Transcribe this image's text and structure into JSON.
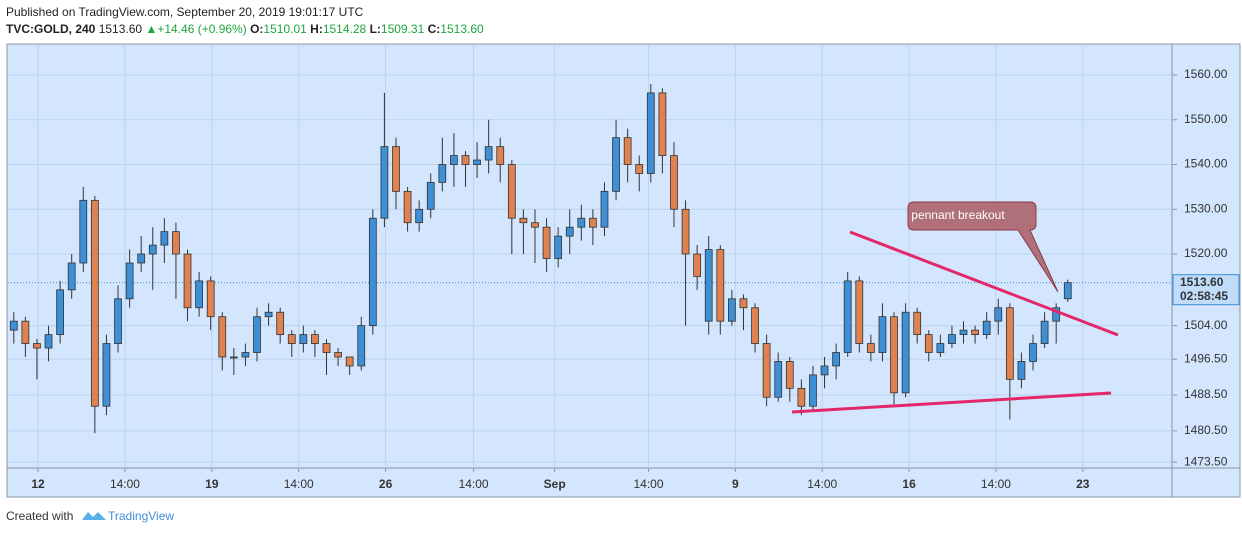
{
  "header": {
    "published": "Published on TradingView.com, September 20, 2019 19:01:17 UTC",
    "symbol": "TVC:GOLD, 240",
    "last": "1513.60",
    "change": "+14.46 (+0.96%)",
    "ohlc": [
      {
        "label": "O:",
        "value": "1510.01"
      },
      {
        "label": "H:",
        "value": "1514.28"
      },
      {
        "label": "L:",
        "value": "1509.31"
      },
      {
        "label": "C:",
        "value": "1513.60"
      }
    ]
  },
  "chart_data": {
    "type": "candlestick",
    "open": [
      1503,
      1505,
      1500,
      1499,
      1502,
      1512,
      1518,
      1532,
      1486,
      1500,
      1510,
      1518,
      1520,
      1522,
      1525,
      1520,
      1508,
      1514,
      1506,
      1497,
      1497,
      1498,
      1506,
      1507,
      1502,
      1500,
      1502,
      1500,
      1498,
      1497,
      1495,
      1504,
      1528,
      1544,
      1534,
      1527,
      1530,
      1536,
      1540,
      1542,
      1540,
      1541,
      1544,
      1540,
      1528,
      1527,
      1526,
      1519,
      1524,
      1526,
      1528,
      1526,
      1534,
      1546,
      1540,
      1538,
      1556,
      1542,
      1530,
      1520,
      1505,
      1521,
      1505,
      1510,
      1508,
      1500,
      1488,
      1496,
      1490,
      1486,
      1493,
      1495,
      1498,
      1514,
      1500,
      1498,
      1506,
      1489,
      1507,
      1502,
      1498,
      1500,
      1502,
      1503,
      1502,
      1505,
      1508,
      1492,
      1496,
      1500,
      1505,
      1510.01
    ],
    "high": [
      1507,
      1506,
      1501,
      1504,
      1514,
      1520,
      1535,
      1533,
      1502,
      1513,
      1521,
      1524,
      1526,
      1528,
      1527,
      1521,
      1516,
      1515,
      1507,
      1499,
      1500,
      1508,
      1509,
      1508,
      1503,
      1504,
      1503,
      1501,
      1499,
      1497,
      1506,
      1530,
      1556,
      1546,
      1535,
      1532,
      1538,
      1546,
      1547,
      1543,
      1545,
      1550,
      1546,
      1541,
      1530,
      1530,
      1528,
      1526,
      1530,
      1531,
      1530,
      1536,
      1550,
      1548,
      1542,
      1558,
      1557,
      1545,
      1532,
      1522,
      1524,
      1522,
      1512,
      1511,
      1509,
      1502,
      1498,
      1497,
      1492,
      1495,
      1497,
      1500,
      1516,
      1515,
      1502,
      1509,
      1507,
      1509,
      1508,
      1503,
      1502,
      1504,
      1505,
      1504,
      1507,
      1510,
      1509,
      1498,
      1502,
      1507,
      1509,
      1514.28
    ],
    "low": [
      1500,
      1497,
      1492,
      1496,
      1500,
      1510,
      1516,
      1480,
      1484,
      1498,
      1508,
      1516,
      1512,
      1518,
      1510,
      1505,
      1506,
      1503,
      1494,
      1493,
      1495,
      1496,
      1504,
      1500,
      1497,
      1498,
      1497,
      1493,
      1495,
      1493,
      1494,
      1502,
      1526,
      1530,
      1525,
      1525,
      1528,
      1534,
      1535,
      1535,
      1537,
      1538,
      1536,
      1520,
      1520,
      1518,
      1516,
      1517,
      1520,
      1523,
      1522,
      1524,
      1532,
      1536,
      1534,
      1536,
      1538,
      1526,
      1504,
      1512,
      1502,
      1502,
      1504,
      1503,
      1498,
      1486,
      1487,
      1487,
      1484,
      1485,
      1490,
      1492,
      1497,
      1498,
      1496,
      1496,
      1486,
      1488,
      1500,
      1496,
      1497,
      1499,
      1500,
      1500,
      1501,
      1502,
      1483,
      1490,
      1494,
      1499,
      1500,
      1509.31
    ],
    "close": [
      1505,
      1500,
      1499,
      1502,
      1512,
      1518,
      1532,
      1486,
      1500,
      1510,
      1518,
      1520,
      1522,
      1525,
      1520,
      1508,
      1514,
      1506,
      1497,
      1497,
      1498,
      1506,
      1507,
      1502,
      1500,
      1502,
      1500,
      1498,
      1497,
      1495,
      1504,
      1528,
      1544,
      1534,
      1527,
      1530,
      1536,
      1540,
      1542,
      1540,
      1541,
      1544,
      1540,
      1528,
      1527,
      1526,
      1519,
      1524,
      1526,
      1528,
      1526,
      1534,
      1546,
      1540,
      1538,
      1556,
      1542,
      1530,
      1520,
      1515,
      1521,
      1505,
      1510,
      1508,
      1500,
      1488,
      1496,
      1490,
      1486,
      1493,
      1495,
      1498,
      1514,
      1500,
      1498,
      1506,
      1489,
      1507,
      1502,
      1498,
      1500,
      1502,
      1503,
      1502,
      1505,
      1508,
      1492,
      1496,
      1500,
      1505,
      1508,
      1513.6
    ],
    "up_color": "#3d8fd6",
    "down_color": "#e0824f",
    "ylim": [
      1472.2,
      1566.7
    ],
    "yticks": [
      {
        "value": 1560,
        "label": "1560.00"
      },
      {
        "value": 1550,
        "label": "1550.00"
      },
      {
        "value": 1540,
        "label": "1540.00"
      },
      {
        "value": 1530,
        "label": "1530.00"
      },
      {
        "value": 1520,
        "label": "1520.00"
      },
      {
        "value": 1504,
        "label": "1504.00"
      },
      {
        "value": 1496.5,
        "label": "1496.50"
      },
      {
        "value": 1488.5,
        "label": "1488.50"
      },
      {
        "value": 1480.5,
        "label": "1480.50"
      },
      {
        "value": 1473.5,
        "label": "1473.50"
      }
    ],
    "xlim": [
      -0.5,
      100
    ],
    "xticks": [
      {
        "value": 2.09,
        "label": "12"
      },
      {
        "value": 9.6,
        "label": "14:00"
      },
      {
        "value": 17.1,
        "label": "19"
      },
      {
        "value": 24.6,
        "label": "14:00"
      },
      {
        "value": 32.1,
        "label": "26"
      },
      {
        "value": 39.7,
        "label": "14:00"
      },
      {
        "value": 46.7,
        "label": "Sep"
      },
      {
        "value": 54.8,
        "label": "14:00"
      },
      {
        "value": 62.3,
        "label": "9"
      },
      {
        "value": 69.8,
        "label": "14:00"
      },
      {
        "value": 77.3,
        "label": "16"
      },
      {
        "value": 84.8,
        "label": "14:00"
      },
      {
        "value": 92.3,
        "label": "23"
      }
    ],
    "grid": true,
    "last_price_label": "1513.60",
    "countdown": "02:58:45",
    "annotations": [
      "pennant breakout"
    ]
  },
  "footer": {
    "created": "Created with",
    "brand": "TradingView"
  }
}
